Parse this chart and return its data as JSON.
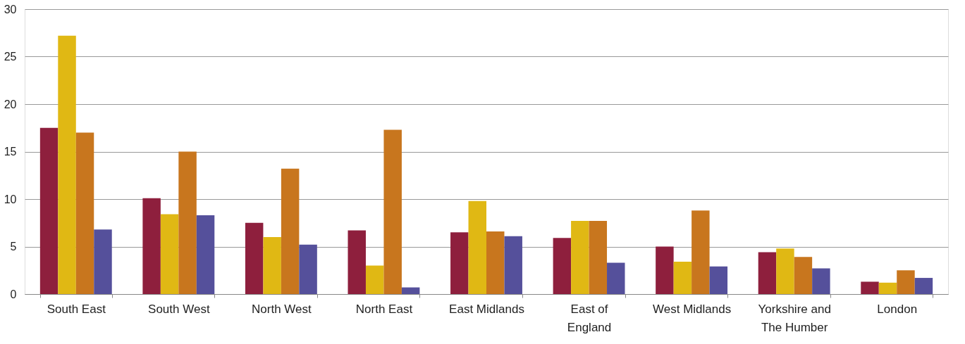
{
  "chart_data": {
    "type": "bar",
    "categories": [
      "South East",
      "South West",
      "North West",
      "North East",
      "East Midlands",
      "East of England",
      "West Midlands",
      "Yorkshire and The Humber",
      "London"
    ],
    "series": [
      {
        "color": "#8e1f3d",
        "values": [
          17.5,
          10.1,
          7.5,
          6.7,
          6.5,
          5.9,
          5.0,
          4.4,
          1.3
        ]
      },
      {
        "color": "#e0b814",
        "values": [
          27.2,
          8.4,
          6.0,
          3.0,
          9.8,
          7.7,
          3.4,
          4.8,
          1.2
        ]
      },
      {
        "color": "#c8761e",
        "values": [
          17.0,
          15.0,
          13.2,
          17.3,
          6.6,
          7.7,
          8.8,
          3.9,
          2.5
        ]
      },
      {
        "color": "#55509b",
        "values": [
          6.8,
          8.3,
          5.2,
          0.7,
          6.1,
          3.3,
          2.9,
          2.7,
          1.7
        ]
      }
    ],
    "ylim": [
      0,
      30
    ],
    "yticks": [
      0,
      5,
      10,
      15,
      20,
      25,
      30
    ],
    "grid": "y",
    "legend": false
  }
}
